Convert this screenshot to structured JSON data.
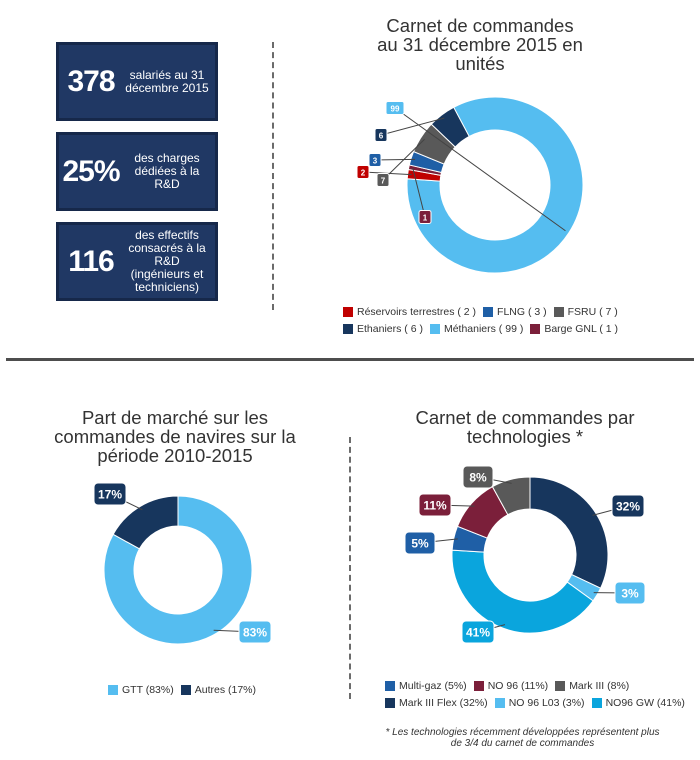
{
  "stats": [
    {
      "value": "378",
      "text": "salariés au 31 décembre 2015"
    },
    {
      "value": "25%",
      "text": "des charges dédiées à la R&D"
    },
    {
      "value": "116",
      "text": "des effectifs consacrés à la R&D (ingénieurs et techniciens)"
    }
  ],
  "chart_data": [
    {
      "type": "pie",
      "title": "Carnet de commandes\nau 31 décembre 2015 en\nunités",
      "categories": [
        "Réservoirs terrestres",
        "FLNG",
        "FSRU",
        "Ethaniers",
        "Méthaniers",
        "Barge GNL"
      ],
      "values": [
        2,
        3,
        7,
        6,
        99,
        1
      ],
      "data_labels": [
        "2",
        "3",
        "7",
        "6",
        "99",
        "1"
      ],
      "legend_labels": [
        "Réservoirs terrestres ( 2 )",
        "FLNG ( 3 )",
        "FSRU ( 7 )",
        "Ethaniers ( 6 )",
        "Méthaniers ( 99 )",
        "Barge GNL ( 1 )"
      ],
      "colors": [
        "#c00000",
        "#1f5fa6",
        "#595959",
        "#17365d",
        "#55bdf0",
        "#7b1f3a"
      ],
      "slice_order": [
        4,
        0,
        5,
        1,
        2,
        3
      ],
      "start_angle": -28,
      "legend_position": "bottom"
    },
    {
      "type": "pie",
      "title": "Part de marché sur les\ncommandes de navires sur la\npériode 2010-2015",
      "categories": [
        "GTT",
        "Autres"
      ],
      "values": [
        83,
        17
      ],
      "data_labels": [
        "83%",
        "17%"
      ],
      "legend_labels": [
        "GTT (83%)",
        "Autres (17%)"
      ],
      "colors": [
        "#55bdf0",
        "#17365d"
      ],
      "slice_order": [
        0,
        1
      ],
      "start_angle": 0,
      "legend_position": "bottom"
    },
    {
      "type": "pie",
      "title": "Carnet de commandes par\ntechnologies *",
      "categories": [
        "Multi-gaz",
        "NO 96",
        "Mark III",
        "Mark III Flex",
        "NO 96 L03",
        "NO96 GW"
      ],
      "values": [
        5,
        11,
        8,
        32,
        3,
        41
      ],
      "data_labels": [
        "5%",
        "11%",
        "8%",
        "32%",
        "3%",
        "41%"
      ],
      "legend_labels": [
        "Multi-gaz (5%)",
        "NO 96 (11%)",
        "Mark III (8%)",
        "Mark III Flex (32%)",
        "NO 96 L03 (3%)",
        "NO96 GW (41%)"
      ],
      "colors": [
        "#1f5fa6",
        "#7b1f3a",
        "#595959",
        "#17365d",
        "#55bdf0",
        "#0aa5dd"
      ],
      "slice_order": [
        3,
        4,
        5,
        0,
        1,
        2
      ],
      "start_angle": 0,
      "legend_position": "bottom"
    }
  ],
  "footnote": "* Les technologies récemment développées représentent plus de 3/4 du carnet de commandes"
}
